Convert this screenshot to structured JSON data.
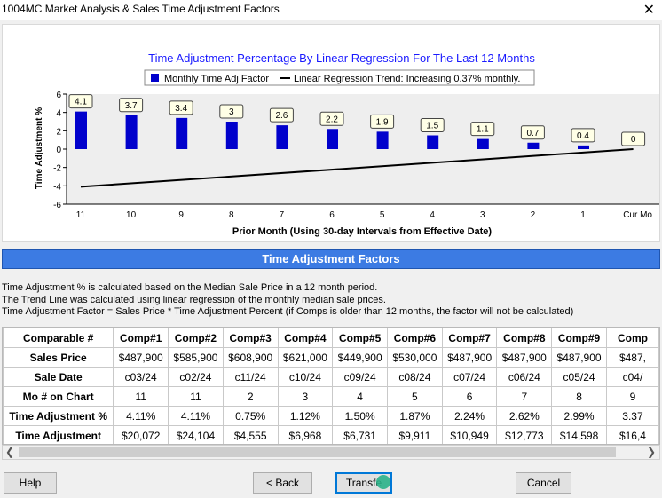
{
  "window": {
    "title": "1004MC Market Analysis & Sales Time Adjustment Factors",
    "close_glyph": "✕"
  },
  "chart": {
    "title": "Time Adjustment Percentage By Linear Regression For The Last  12 Months",
    "legend_bar": "Monthly Time Adj Factor",
    "legend_line": "Linear Regression Trend: Increasing 0.37% monthly.",
    "ylabel": "Time Adjustment %",
    "xlabel": "Prior Month (Using 30-day Intervals from Effective Date)"
  },
  "chart_data": {
    "type": "bar",
    "categories": [
      "11",
      "10",
      "9",
      "8",
      "7",
      "6",
      "5",
      "4",
      "3",
      "2",
      "1",
      "Cur Mo"
    ],
    "values": [
      4.1,
      3.7,
      3.4,
      3,
      2.6,
      2.2,
      1.9,
      1.5,
      1.1,
      0.7,
      0.4,
      0
    ],
    "labels": [
      "4.1",
      "3.7",
      "3.4",
      "3",
      "2.6",
      "2.2",
      "1.9",
      "1.5",
      "1.1",
      "0.7",
      "0.4",
      "0"
    ],
    "trend_line": {
      "start": -4.1,
      "end": 0
    },
    "ylim": [
      -6,
      6
    ],
    "yticks": [
      6,
      4,
      2,
      0,
      -2,
      -4,
      -6
    ],
    "bar_color": "#0000cc",
    "grid": false,
    "legend_position": "top"
  },
  "section_header": "Time Adjustment Factors",
  "description": [
    "Time Adjustment % is calculated based on the Median Sale Price in a 12 month period.",
    "The Trend Line was calculated using linear regression of the monthly median sale prices.",
    "Time Adjustment Factor = Sales Price * Time Adjustment Percent (if Comps is older than 12 months, the factor will not be calculated)"
  ],
  "table": {
    "corner": "Comparable #",
    "columns": [
      "Comp#1",
      "Comp#2",
      "Comp#3",
      "Comp#4",
      "Comp#5",
      "Comp#6",
      "Comp#7",
      "Comp#8",
      "Comp#9",
      "Comp"
    ],
    "rows": [
      {
        "label": "Sales Price",
        "cells": [
          "$487,900",
          "$585,900",
          "$608,900",
          "$621,000",
          "$449,900",
          "$530,000",
          "$487,900",
          "$487,900",
          "$487,900",
          "$487,"
        ]
      },
      {
        "label": "Sale Date",
        "cells": [
          "c03/24",
          "c02/24",
          "c11/24",
          "c10/24",
          "c09/24",
          "c08/24",
          "c07/24",
          "c06/24",
          "c05/24",
          "c04/"
        ]
      },
      {
        "label": "Mo # on Chart",
        "cells": [
          "11",
          "11",
          "2",
          "3",
          "4",
          "5",
          "6",
          "7",
          "8",
          "9"
        ]
      },
      {
        "label": "Time Adjustment %",
        "cells": [
          "4.11%",
          "4.11%",
          "0.75%",
          "1.12%",
          "1.50%",
          "1.87%",
          "2.24%",
          "2.62%",
          "2.99%",
          "3.37"
        ]
      },
      {
        "label": "Time Adjustment",
        "cells": [
          "$20,072",
          "$24,104",
          "$4,555",
          "$6,968",
          "$6,731",
          "$9,911",
          "$10,949",
          "$12,773",
          "$14,598",
          "$16,4"
        ]
      }
    ]
  },
  "buttons": {
    "help": "Help",
    "back": "< Back",
    "transfer": "Transfe",
    "cancel": "Cancel"
  }
}
